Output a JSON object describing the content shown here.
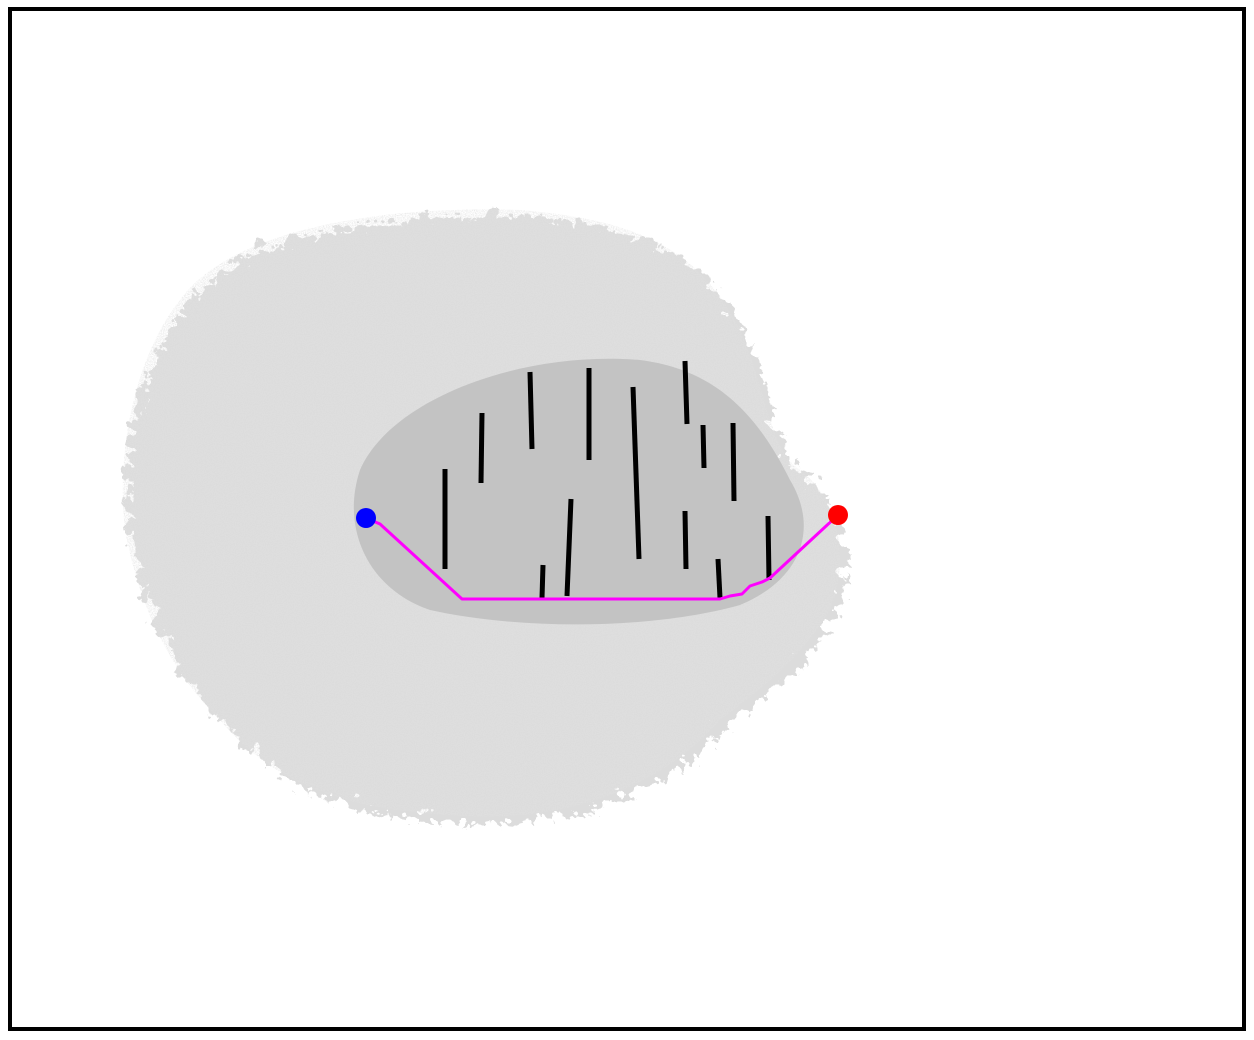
{
  "scene": {
    "background_color": "#ffffff",
    "border_color": "#000000",
    "explored_color": "#c0c0c0",
    "obstacle_color": "#000000",
    "path_color": "#ff00ff",
    "start_color": "#0000ff",
    "goal_color": "#ff0000"
  },
  "legend": {}
}
